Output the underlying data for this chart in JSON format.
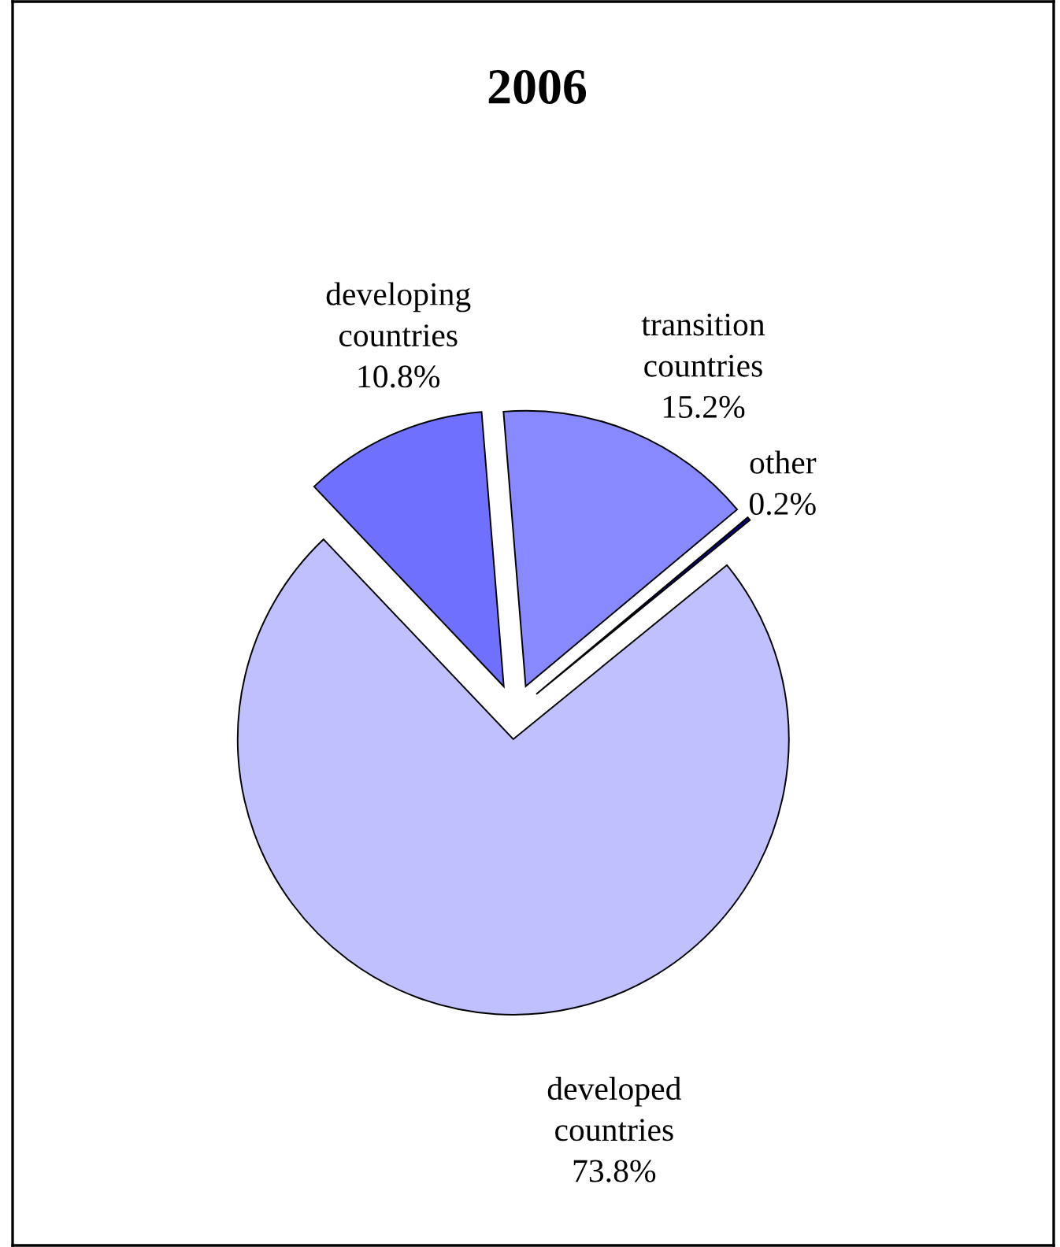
{
  "chart_data": {
    "type": "pie",
    "title": "2006",
    "categories": [
      "other",
      "developed countries",
      "developing countries",
      "transition countries"
    ],
    "values": [
      0.2,
      73.8,
      10.8,
      15.2
    ],
    "colors": [
      "#000080",
      "#c0c0ff",
      "#7070ff",
      "#8888ff"
    ],
    "value_labels": [
      "0.2%",
      "73.8%",
      "10.8%",
      "15.2%"
    ]
  }
}
